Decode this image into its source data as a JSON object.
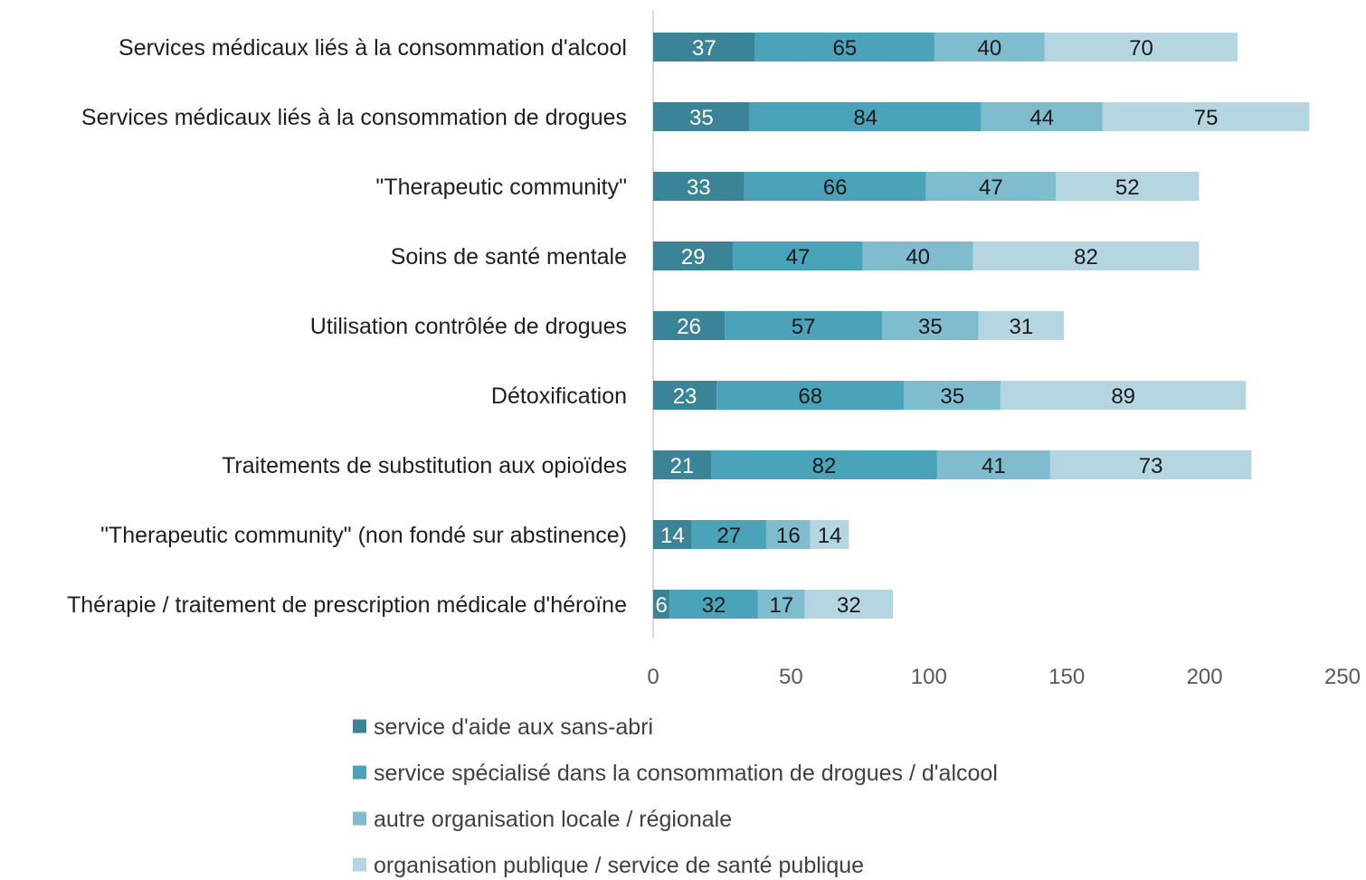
{
  "chart_data": {
    "type": "bar",
    "orientation": "horizontal",
    "stacked": true,
    "categories": [
      "Services médicaux liés à la consommation d'alcool",
      "Services médicaux liés à la consommation de drogues",
      "\"Therapeutic community\"",
      "Soins de santé mentale",
      "Utilisation contrôlée de drogues",
      "Détoxification",
      "Traitements de substitution aux opioïdes",
      "\"Therapeutic community\" (non fondé sur abstinence)",
      "Thérapie / traitement de prescription médicale d'héroïne"
    ],
    "series": [
      {
        "name": "service d'aide aux sans-abri",
        "color": "#3b8396",
        "label_color": "#ffffff",
        "values": [
          37,
          35,
          33,
          29,
          26,
          23,
          21,
          14,
          6
        ]
      },
      {
        "name": "service spécialisé dans la consommation de drogues / d'alcool",
        "color": "#4aa3b9",
        "label_color": "#1a1a1a",
        "values": [
          65,
          84,
          66,
          47,
          57,
          68,
          82,
          27,
          32
        ]
      },
      {
        "name": "autre organisation locale / régionale",
        "color": "#7fbccd",
        "label_color": "#1a1a1a",
        "values": [
          40,
          44,
          47,
          40,
          35,
          35,
          41,
          16,
          17
        ]
      },
      {
        "name": "organisation publique / service de santé publique",
        "color": "#b5d6e0",
        "label_color": "#1a1a1a",
        "values": [
          70,
          75,
          52,
          82,
          31,
          89,
          73,
          14,
          32
        ]
      }
    ],
    "xlim": [
      0,
      250
    ],
    "xticks": [
      "0",
      "50",
      "100",
      "150",
      "200",
      "250"
    ],
    "grid": false,
    "legend_position": "bottom"
  }
}
